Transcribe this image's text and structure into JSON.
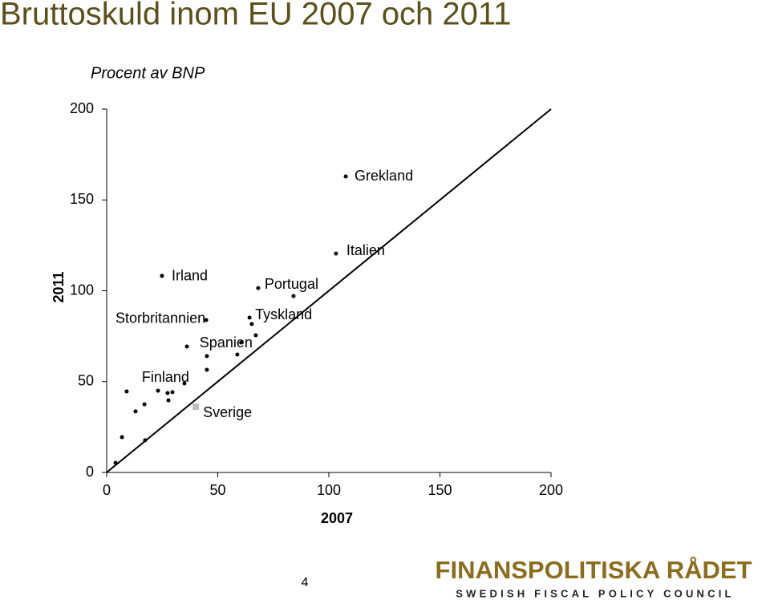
{
  "chart_data": {
    "type": "scatter",
    "title": "Bruttoskuld inom EU 2007 och 2011",
    "subtitle": "Procent av BNP",
    "x_label": "2007",
    "y_label": "2011",
    "xlim": [
      0,
      200
    ],
    "ylim": [
      0,
      200
    ],
    "xticks": [
      0,
      50,
      100,
      150,
      200
    ],
    "yticks": [
      0,
      50,
      100,
      150,
      200
    ],
    "reference_line": [
      [
        0,
        0
      ],
      [
        200,
        200
      ]
    ],
    "series": [
      {
        "color": "#000000",
        "marker": "circle",
        "x": [
          107.6,
          103.2,
          68.2,
          84.1,
          24.9,
          44.8,
          64.3,
          65.3,
          67.1,
          60.6,
          58.8,
          36.1,
          45.1,
          45.1,
          35.0,
          9.0,
          23.1,
          27.4,
          29.6,
          27.8,
          17.0,
          13.0,
          6.9,
          17.3,
          4.0
        ],
        "values": [
          162.9,
          120.5,
          101.5,
          97.1,
          108.2,
          83.9,
          85.2,
          81.7,
          75.5,
          71.5,
          64.9,
          69.3,
          64.0,
          56.5,
          49.0,
          44.6,
          45.0,
          43.7,
          44.2,
          39.7,
          37.5,
          33.6,
          19.4,
          17.7,
          5.3
        ],
        "labels": [
          "Grekland",
          "Italien",
          "Portugal",
          null,
          "Irland",
          "Storbritannien",
          "Tyskland",
          null,
          null,
          "Spanien",
          null,
          null,
          null,
          null,
          "Finland",
          null,
          null,
          null,
          null,
          null,
          null,
          null,
          null,
          null,
          null
        ]
      },
      {
        "color": "#bfbfbf",
        "marker": "square",
        "x": [
          40.1
        ],
        "values": [
          36.2
        ],
        "labels": [
          "Sverige"
        ]
      }
    ]
  },
  "footer": {
    "page_number": "4",
    "logo_title": "FINANSPOLITISKA RÅDET",
    "logo_subtitle": "SWEDISH FISCAL POLICY COUNCIL"
  }
}
